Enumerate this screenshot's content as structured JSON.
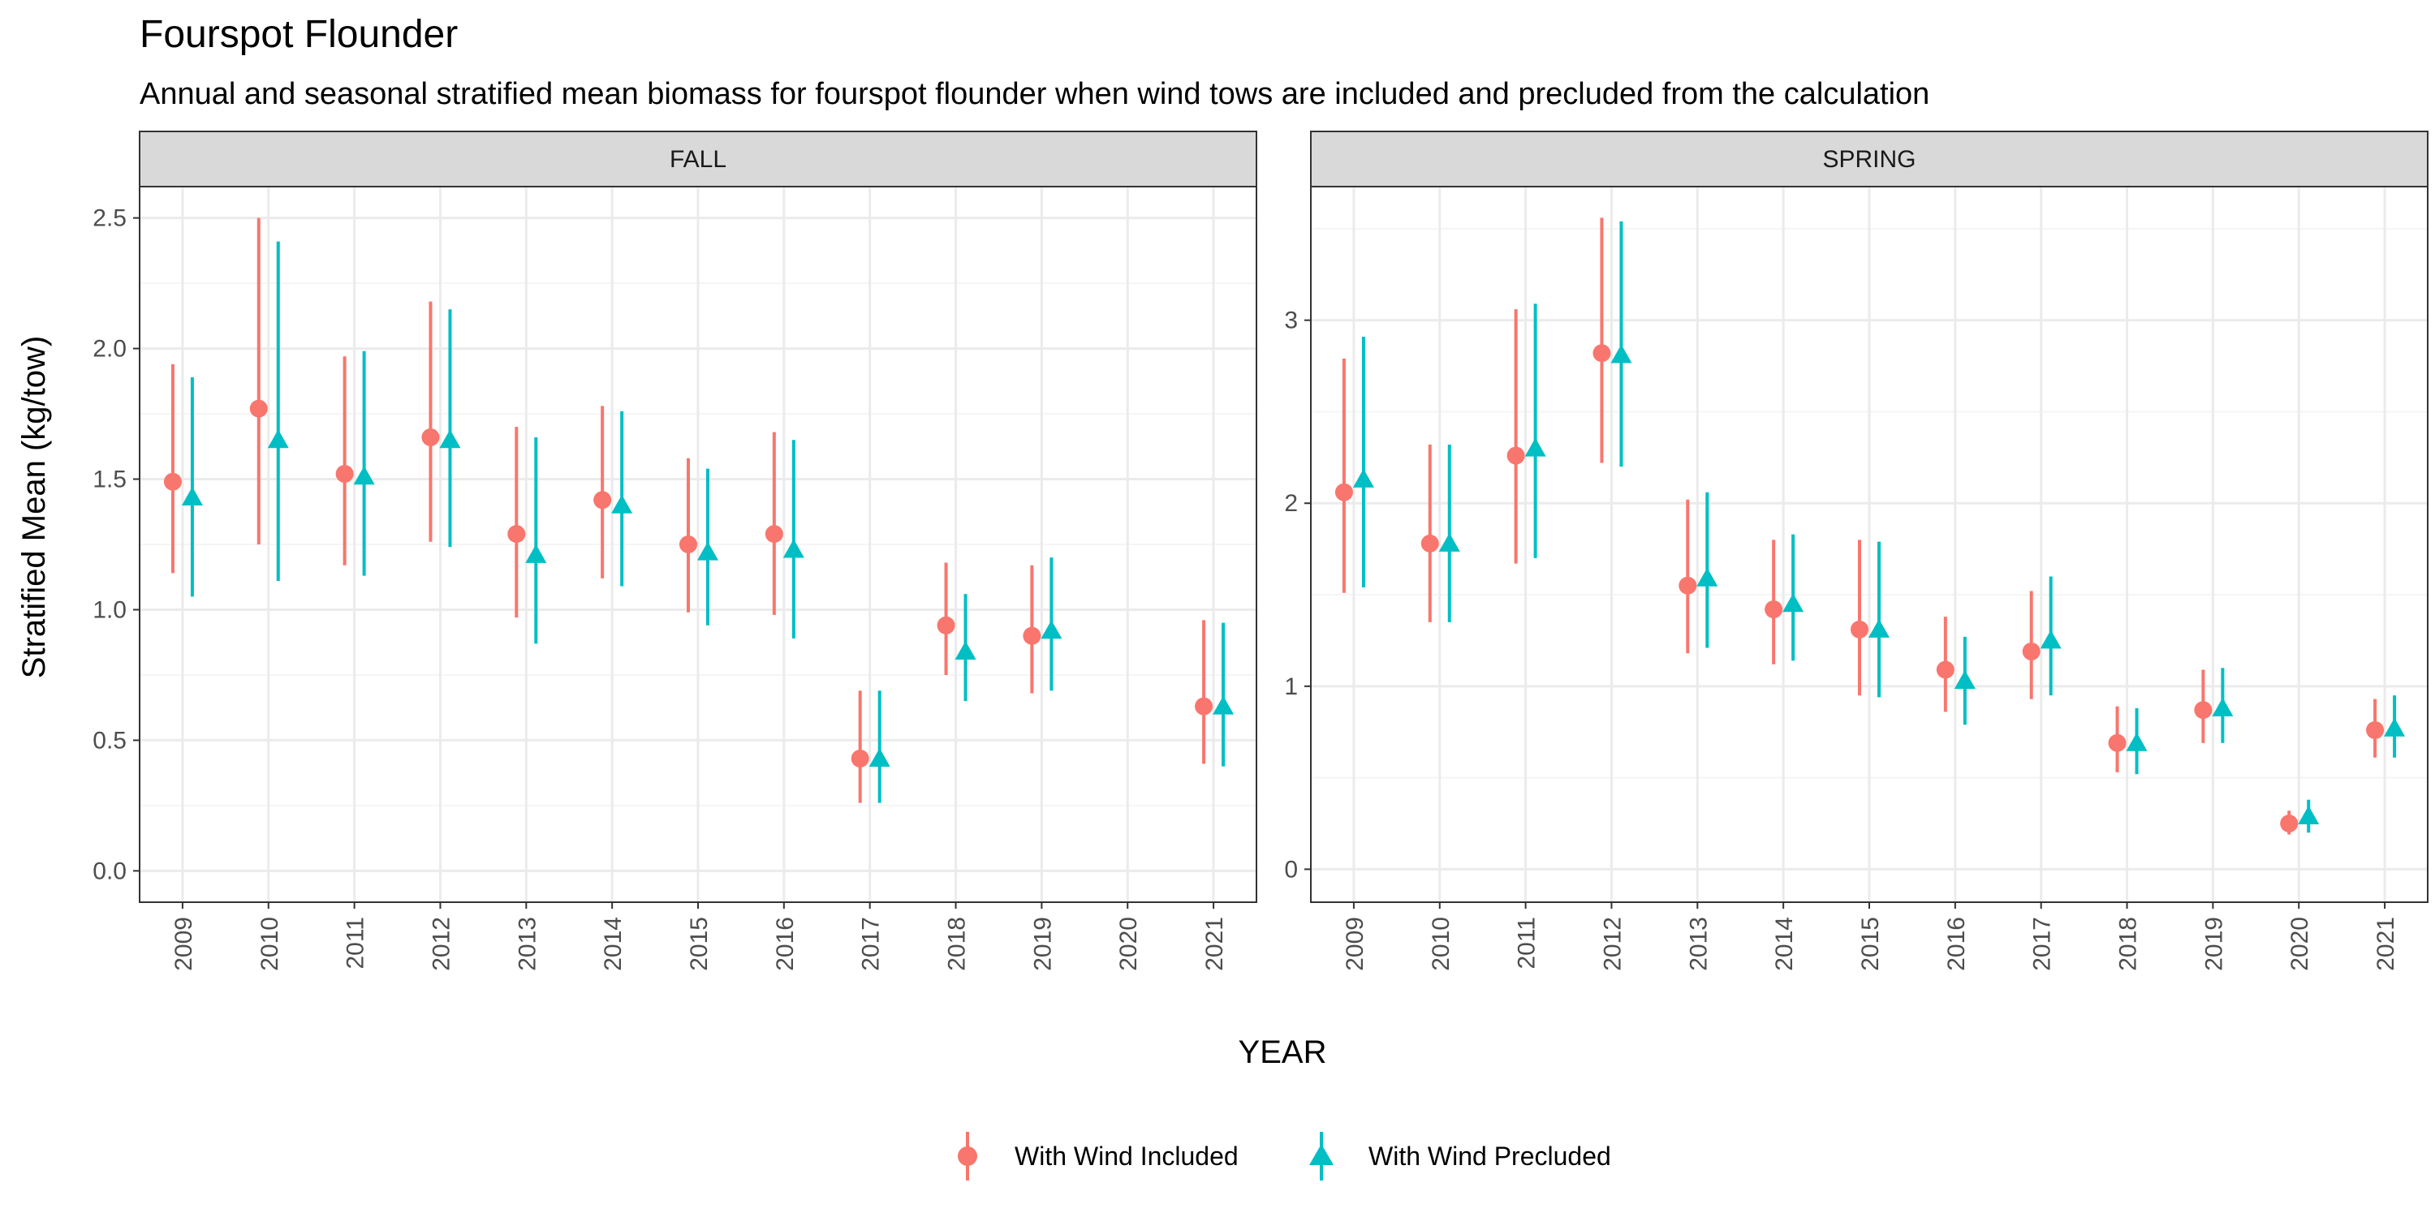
{
  "colors": {
    "included": "#F8766D",
    "precluded": "#00BFC4",
    "strip_fill": "#D9D9D9",
    "grid_major": "#EBEBEB",
    "grid_minor": "#F5F5F5",
    "panel_border": "#333333"
  },
  "chart_data": {
    "type": "scatter",
    "title": "Fourspot Flounder",
    "subtitle": "Annual and seasonal stratified mean biomass for fourspot flounder when wind tows are included and precluded from the calculation",
    "xlabel": "YEAR",
    "ylabel": "Stratified Mean (kg/tow)",
    "x_ticks": [
      "2009",
      "2010",
      "2011",
      "2012",
      "2013",
      "2014",
      "2015",
      "2016",
      "2017",
      "2018",
      "2019",
      "2020",
      "2021"
    ],
    "legend": {
      "position": "bottom",
      "items": [
        {
          "key": "included",
          "label": "With Wind Included",
          "shape": "circle"
        },
        {
          "key": "precluded",
          "label": "With Wind Precluded",
          "shape": "triangle"
        }
      ]
    },
    "grid": true,
    "panels": [
      {
        "strip": "FALL",
        "ylim": [
          -0.12,
          2.62
        ],
        "y_ticks": [
          0.0,
          0.5,
          1.0,
          1.5,
          2.0,
          2.5
        ],
        "y_tick_labels": [
          "0.0",
          "0.5",
          "1.0",
          "1.5",
          "2.0",
          "2.5"
        ],
        "series": [
          {
            "name": "With Wind Included",
            "points": [
              {
                "x": "2009",
                "y": 1.49,
                "lo": 1.14,
                "hi": 1.94
              },
              {
                "x": "2010",
                "y": 1.77,
                "lo": 1.25,
                "hi": 2.5
              },
              {
                "x": "2011",
                "y": 1.52,
                "lo": 1.17,
                "hi": 1.97
              },
              {
                "x": "2012",
                "y": 1.66,
                "lo": 1.26,
                "hi": 2.18
              },
              {
                "x": "2013",
                "y": 1.29,
                "lo": 0.97,
                "hi": 1.7
              },
              {
                "x": "2014",
                "y": 1.42,
                "lo": 1.12,
                "hi": 1.78
              },
              {
                "x": "2015",
                "y": 1.25,
                "lo": 0.99,
                "hi": 1.58
              },
              {
                "x": "2016",
                "y": 1.29,
                "lo": 0.98,
                "hi": 1.68
              },
              {
                "x": "2017",
                "y": 0.43,
                "lo": 0.26,
                "hi": 0.69
              },
              {
                "x": "2018",
                "y": 0.94,
                "lo": 0.75,
                "hi": 1.18
              },
              {
                "x": "2019",
                "y": 0.9,
                "lo": 0.68,
                "hi": 1.17
              },
              {
                "x": "2021",
                "y": 0.63,
                "lo": 0.41,
                "hi": 0.96
              }
            ]
          },
          {
            "name": "With Wind Precluded",
            "points": [
              {
                "x": "2009",
                "y": 1.43,
                "lo": 1.05,
                "hi": 1.89
              },
              {
                "x": "2010",
                "y": 1.65,
                "lo": 1.11,
                "hi": 2.41
              },
              {
                "x": "2011",
                "y": 1.51,
                "lo": 1.13,
                "hi": 1.99
              },
              {
                "x": "2012",
                "y": 1.65,
                "lo": 1.24,
                "hi": 2.15
              },
              {
                "x": "2013",
                "y": 1.21,
                "lo": 0.87,
                "hi": 1.66
              },
              {
                "x": "2014",
                "y": 1.4,
                "lo": 1.09,
                "hi": 1.76
              },
              {
                "x": "2015",
                "y": 1.22,
                "lo": 0.94,
                "hi": 1.54
              },
              {
                "x": "2016",
                "y": 1.23,
                "lo": 0.89,
                "hi": 1.65
              },
              {
                "x": "2017",
                "y": 0.43,
                "lo": 0.26,
                "hi": 0.69
              },
              {
                "x": "2018",
                "y": 0.84,
                "lo": 0.65,
                "hi": 1.06
              },
              {
                "x": "2019",
                "y": 0.92,
                "lo": 0.69,
                "hi": 1.2
              },
              {
                "x": "2021",
                "y": 0.63,
                "lo": 0.4,
                "hi": 0.95
              }
            ]
          }
        ]
      },
      {
        "strip": "SPRING",
        "ylim": [
          -0.18,
          3.73
        ],
        "y_ticks": [
          0,
          1,
          2,
          3
        ],
        "y_tick_labels": [
          "0",
          "1",
          "2",
          "3"
        ],
        "series": [
          {
            "name": "With Wind Included",
            "points": [
              {
                "x": "2009",
                "y": 2.06,
                "lo": 1.51,
                "hi": 2.79
              },
              {
                "x": "2010",
                "y": 1.78,
                "lo": 1.35,
                "hi": 2.32
              },
              {
                "x": "2011",
                "y": 2.26,
                "lo": 1.67,
                "hi": 3.06
              },
              {
                "x": "2012",
                "y": 2.82,
                "lo": 2.22,
                "hi": 3.56
              },
              {
                "x": "2013",
                "y": 1.55,
                "lo": 1.18,
                "hi": 2.02
              },
              {
                "x": "2014",
                "y": 1.42,
                "lo": 1.12,
                "hi": 1.8
              },
              {
                "x": "2015",
                "y": 1.31,
                "lo": 0.95,
                "hi": 1.8
              },
              {
                "x": "2016",
                "y": 1.09,
                "lo": 0.86,
                "hi": 1.38
              },
              {
                "x": "2017",
                "y": 1.19,
                "lo": 0.93,
                "hi": 1.52
              },
              {
                "x": "2018",
                "y": 0.69,
                "lo": 0.53,
                "hi": 0.89
              },
              {
                "x": "2019",
                "y": 0.87,
                "lo": 0.69,
                "hi": 1.09
              },
              {
                "x": "2020",
                "y": 0.25,
                "lo": 0.19,
                "hi": 0.32
              },
              {
                "x": "2021",
                "y": 0.76,
                "lo": 0.61,
                "hi": 0.93
              }
            ]
          },
          {
            "name": "With Wind Precluded",
            "points": [
              {
                "x": "2009",
                "y": 2.13,
                "lo": 1.54,
                "hi": 2.91
              },
              {
                "x": "2010",
                "y": 1.78,
                "lo": 1.35,
                "hi": 2.32
              },
              {
                "x": "2011",
                "y": 2.3,
                "lo": 1.7,
                "hi": 3.09
              },
              {
                "x": "2012",
                "y": 2.81,
                "lo": 2.2,
                "hi": 3.54
              },
              {
                "x": "2013",
                "y": 1.59,
                "lo": 1.21,
                "hi": 2.06
              },
              {
                "x": "2014",
                "y": 1.45,
                "lo": 1.14,
                "hi": 1.83
              },
              {
                "x": "2015",
                "y": 1.31,
                "lo": 0.94,
                "hi": 1.79
              },
              {
                "x": "2016",
                "y": 1.03,
                "lo": 0.79,
                "hi": 1.27
              },
              {
                "x": "2017",
                "y": 1.25,
                "lo": 0.95,
                "hi": 1.6
              },
              {
                "x": "2018",
                "y": 0.69,
                "lo": 0.52,
                "hi": 0.88
              },
              {
                "x": "2019",
                "y": 0.88,
                "lo": 0.69,
                "hi": 1.1
              },
              {
                "x": "2020",
                "y": 0.29,
                "lo": 0.2,
                "hi": 0.38
              },
              {
                "x": "2021",
                "y": 0.77,
                "lo": 0.61,
                "hi": 0.95
              }
            ]
          }
        ]
      }
    ]
  }
}
